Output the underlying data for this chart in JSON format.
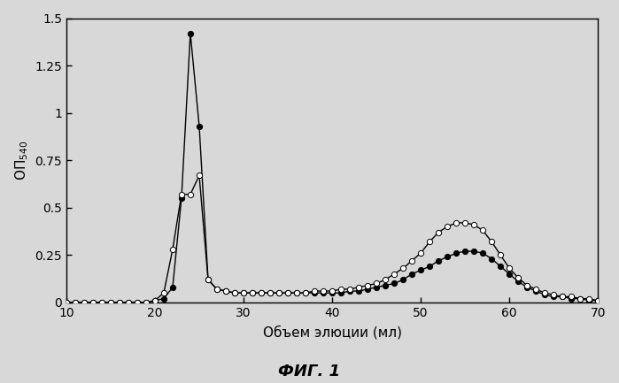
{
  "xlabel": "Объем элюции (мл)",
  "caption": "ФИГ. 1",
  "xlim": [
    10,
    70
  ],
  "ylim": [
    0,
    1.5
  ],
  "yticks": [
    0,
    0.25,
    0.5,
    0.75,
    1,
    1.25,
    1.5
  ],
  "xticks": [
    10,
    20,
    30,
    40,
    50,
    60,
    70
  ],
  "bg_color": "#d8d8d8",
  "series1_x": [
    10,
    11,
    12,
    13,
    14,
    15,
    16,
    17,
    18,
    19,
    20,
    21,
    22,
    23,
    24,
    25,
    26,
    27,
    28,
    29,
    30,
    31,
    32,
    33,
    34,
    35,
    36,
    37,
    38,
    39,
    40,
    41,
    42,
    43,
    44,
    45,
    46,
    47,
    48,
    49,
    50,
    51,
    52,
    53,
    54,
    55,
    56,
    57,
    58,
    59,
    60,
    61,
    62,
    63,
    64,
    65,
    66,
    67,
    68,
    69,
    70
  ],
  "series1_y": [
    0.0,
    0.0,
    0.0,
    0.0,
    0.0,
    0.0,
    0.0,
    0.0,
    0.0,
    0.0,
    0.01,
    0.02,
    0.08,
    0.55,
    1.42,
    0.93,
    0.12,
    0.07,
    0.06,
    0.05,
    0.05,
    0.05,
    0.05,
    0.05,
    0.05,
    0.05,
    0.05,
    0.05,
    0.05,
    0.05,
    0.05,
    0.05,
    0.06,
    0.06,
    0.07,
    0.08,
    0.09,
    0.1,
    0.12,
    0.15,
    0.17,
    0.19,
    0.22,
    0.24,
    0.26,
    0.27,
    0.27,
    0.26,
    0.23,
    0.19,
    0.15,
    0.11,
    0.08,
    0.06,
    0.04,
    0.03,
    0.03,
    0.02,
    0.02,
    0.01,
    0.01
  ],
  "series2_x": [
    10,
    11,
    12,
    13,
    14,
    15,
    16,
    17,
    18,
    19,
    20,
    21,
    22,
    23,
    24,
    25,
    26,
    27,
    28,
    29,
    30,
    31,
    32,
    33,
    34,
    35,
    36,
    37,
    38,
    39,
    40,
    41,
    42,
    43,
    44,
    45,
    46,
    47,
    48,
    49,
    50,
    51,
    52,
    53,
    54,
    55,
    56,
    57,
    58,
    59,
    60,
    61,
    62,
    63,
    64,
    65,
    66,
    67,
    68,
    69,
    70
  ],
  "series2_y": [
    0.0,
    0.0,
    0.0,
    0.0,
    0.0,
    0.0,
    0.0,
    0.0,
    0.0,
    0.0,
    0.01,
    0.05,
    0.28,
    0.57,
    0.57,
    0.67,
    0.12,
    0.07,
    0.06,
    0.05,
    0.05,
    0.05,
    0.05,
    0.05,
    0.05,
    0.05,
    0.05,
    0.05,
    0.06,
    0.06,
    0.06,
    0.07,
    0.07,
    0.08,
    0.09,
    0.1,
    0.12,
    0.15,
    0.18,
    0.22,
    0.26,
    0.32,
    0.37,
    0.4,
    0.42,
    0.42,
    0.41,
    0.38,
    0.32,
    0.25,
    0.18,
    0.13,
    0.09,
    0.07,
    0.05,
    0.04,
    0.03,
    0.03,
    0.02,
    0.02,
    0.01
  ]
}
